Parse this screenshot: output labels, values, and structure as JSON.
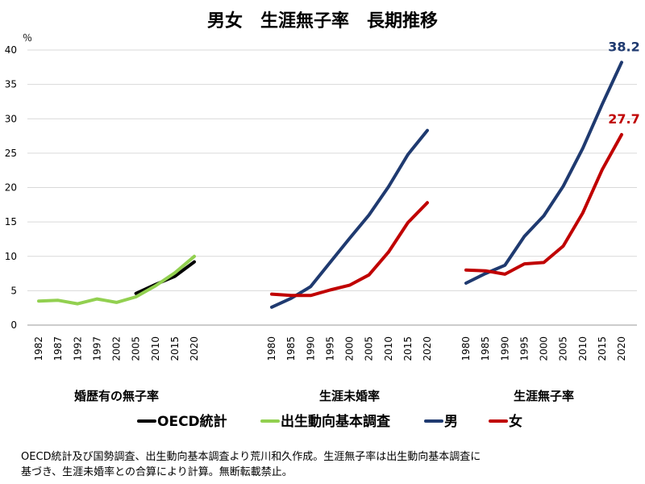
{
  "chart_data": {
    "type": "line",
    "title": "男女　生涯無子率　長期推移",
    "unit": "％",
    "ylim": [
      0,
      40
    ],
    "yticks": [
      0,
      5,
      10,
      15,
      20,
      25,
      30,
      35,
      40
    ],
    "grid": true,
    "legend_position": "bottom",
    "legend": [
      {
        "label": "OECD統計",
        "color": "#000000"
      },
      {
        "label": "出生動向基本調査",
        "color": "#92d050"
      },
      {
        "label": "男",
        "color": "#1f3a70"
      },
      {
        "label": "女",
        "color": "#c00000"
      }
    ],
    "groups": [
      {
        "name": "婚歴有の無子率",
        "x": [
          "1982",
          "1987",
          "1992",
          "1997",
          "2002",
          "2005",
          "2010",
          "2015",
          "2020"
        ],
        "series": [
          {
            "name": "OECD統計",
            "color": "#000000",
            "values": [
              null,
              null,
              null,
              null,
              null,
              4.6,
              5.9,
              7.1,
              9.2
            ]
          },
          {
            "name": "出生動向基本調査",
            "color": "#92d050",
            "values": [
              3.5,
              3.6,
              3.1,
              3.8,
              3.3,
              4.1,
              5.7,
              7.6,
              10.0
            ]
          }
        ]
      },
      {
        "name": "生涯未婚率",
        "x": [
          "1980",
          "1985",
          "1990",
          "1995",
          "2000",
          "2005",
          "2010",
          "2015",
          "2020"
        ],
        "series": [
          {
            "name": "男",
            "color": "#1f3a70",
            "values": [
              2.6,
              3.9,
              5.6,
              9.1,
              12.6,
              16.0,
              20.1,
              24.8,
              28.3
            ]
          },
          {
            "name": "女",
            "color": "#c00000",
            "values": [
              4.5,
              4.3,
              4.3,
              5.1,
              5.8,
              7.3,
              10.6,
              14.9,
              17.8
            ]
          }
        ]
      },
      {
        "name": "生涯無子率",
        "x": [
          "1980",
          "1985",
          "1990",
          "1995",
          "2000",
          "2005",
          "2010",
          "2015",
          "2020"
        ],
        "series": [
          {
            "name": "男",
            "color": "#1f3a70",
            "values": [
              6.1,
              7.5,
              8.7,
              12.9,
              15.9,
              20.2,
              25.7,
              32.1,
              38.2
            ],
            "end_label": "38.2"
          },
          {
            "name": "女",
            "color": "#c00000",
            "values": [
              8.0,
              7.9,
              7.4,
              8.9,
              9.1,
              11.5,
              16.3,
              22.6,
              27.7
            ],
            "end_label": "27.7"
          }
        ]
      }
    ]
  },
  "footnote": [
    "OECD統計及び国勢調査、出生動向基本調査より荒川和久作成。生涯無子率は出生動向基本調査に",
    "基づき、生涯未婚率との合算により計算。無断転載禁止。"
  ]
}
